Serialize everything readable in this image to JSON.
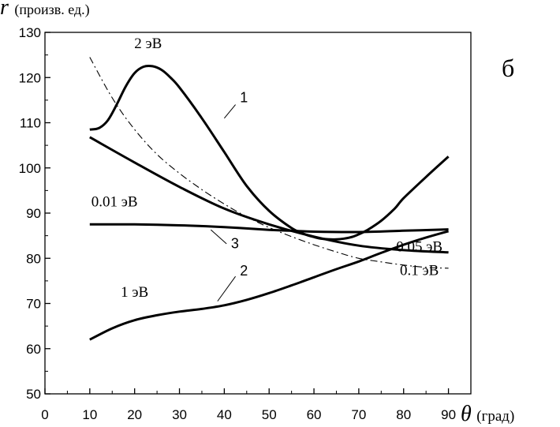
{
  "chart_data": {
    "type": "line",
    "title": "",
    "panel_label": "б",
    "ylabel_symbol": "r",
    "ylabel_units": "(произв. ед.)",
    "xlabel_symbol": "θ",
    "xlabel_units": "(град)",
    "xlim": [
      0,
      95
    ],
    "ylim": [
      50,
      130
    ],
    "xticks": [
      0,
      10,
      20,
      30,
      40,
      50,
      60,
      70,
      80,
      90
    ],
    "yticks": [
      50,
      60,
      70,
      80,
      90,
      100,
      110,
      120,
      130
    ],
    "grid": false,
    "series": [
      {
        "name": "2 эВ",
        "number": "1",
        "style": "solid",
        "x": [
          10,
          12,
          14,
          16,
          18,
          20,
          22,
          24,
          26,
          28,
          30,
          35,
          40,
          45,
          50,
          55,
          58,
          60,
          62,
          65,
          68,
          70,
          72,
          75,
          78,
          80,
          85,
          90
        ],
        "y": [
          108.5,
          108.8,
          110.5,
          114,
          118,
          121,
          122.4,
          122.5,
          121.7,
          120,
          117.8,
          111,
          103.5,
          96,
          90.5,
          86.7,
          85.3,
          84.7,
          84.3,
          84.2,
          84.6,
          85.3,
          86.3,
          88.3,
          91,
          93.3,
          98,
          102.5
        ]
      },
      {
        "name": "1 эВ",
        "number": "2",
        "style": "solid",
        "x": [
          10,
          15,
          20,
          25,
          30,
          35,
          40,
          45,
          50,
          55,
          60,
          65,
          70,
          75,
          80,
          85,
          90
        ],
        "y": [
          62,
          64.5,
          66.3,
          67.4,
          68.2,
          68.8,
          69.6,
          70.8,
          72.3,
          74,
          75.8,
          77.6,
          79.3,
          81.2,
          83,
          84.6,
          86
        ]
      },
      {
        "name": "0.01 эВ",
        "number": "3",
        "style": "solid",
        "x": [
          10,
          20,
          30,
          40,
          50,
          55,
          60,
          70,
          80,
          90
        ],
        "y": [
          87.5,
          87.5,
          87.3,
          86.9,
          86.3,
          86.1,
          85.9,
          85.8,
          86.1,
          86.4
        ]
      },
      {
        "name": "0.05 эВ",
        "number": "",
        "style": "solid",
        "x": [
          10,
          20,
          30,
          40,
          50,
          60,
          70,
          80,
          90
        ],
        "y": [
          106.8,
          101.2,
          95.8,
          91,
          87.5,
          84.8,
          82.8,
          81.8,
          81.3
        ]
      },
      {
        "name": "0.1 эВ",
        "number": "",
        "style": "dashdot",
        "x": [
          10,
          15,
          20,
          25,
          30,
          35,
          40,
          45,
          50,
          55,
          60,
          65,
          70,
          75,
          80,
          85,
          90
        ],
        "y": [
          124.5,
          115.5,
          108.5,
          103,
          98.8,
          95.2,
          92,
          89.2,
          86.8,
          84.8,
          83,
          81.4,
          80,
          79.2,
          78.5,
          78,
          77.8
        ]
      }
    ]
  }
}
